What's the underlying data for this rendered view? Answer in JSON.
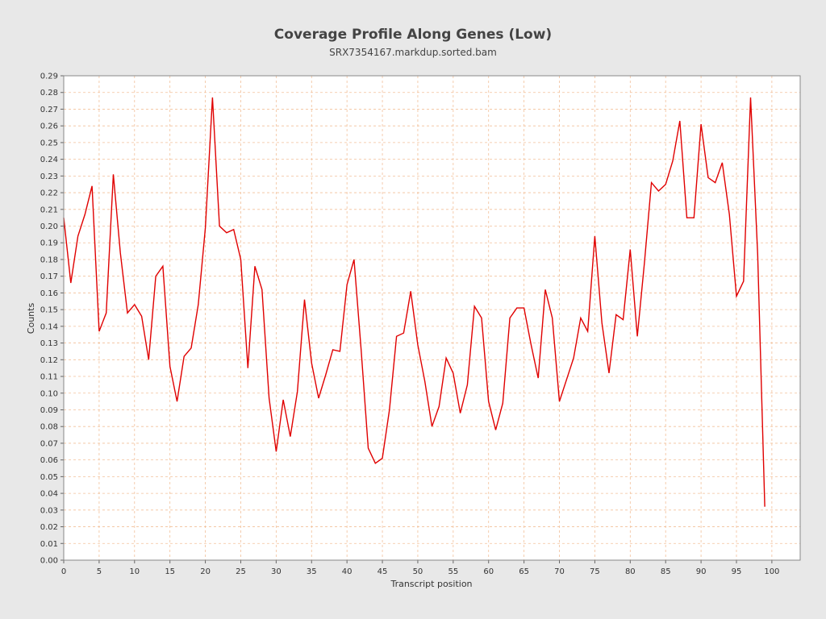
{
  "chart_data": {
    "type": "line",
    "title": "Coverage Profile Along Genes (Low)",
    "subtitle": "SRX7354167.markdup.sorted.bam",
    "xlabel": "Transcript position",
    "ylabel": "Counts",
    "xlim": [
      0,
      104
    ],
    "ylim": [
      0,
      0.29
    ],
    "x_ticks": [
      0,
      5,
      10,
      15,
      20,
      25,
      30,
      35,
      40,
      45,
      50,
      55,
      60,
      65,
      70,
      75,
      80,
      85,
      90,
      95,
      100
    ],
    "y_ticks": [
      "0.00",
      "0.01",
      "0.02",
      "0.03",
      "0.04",
      "0.05",
      "0.06",
      "0.07",
      "0.08",
      "0.09",
      "0.10",
      "0.11",
      "0.12",
      "0.13",
      "0.14",
      "0.15",
      "0.16",
      "0.17",
      "0.18",
      "0.19",
      "0.20",
      "0.21",
      "0.22",
      "0.23",
      "0.24",
      "0.25",
      "0.26",
      "0.27",
      "0.28",
      "0.29"
    ],
    "grid": true,
    "colors": {
      "line": "#e00000",
      "grid": "#f2c09a",
      "plot_bg": "#ffffff",
      "page_bg": "#e8e8e8"
    },
    "series": [
      {
        "x": [
          0,
          1,
          2,
          3,
          4,
          5,
          6,
          7,
          8,
          9,
          10,
          11,
          12,
          13,
          14,
          15,
          16,
          17,
          18,
          19,
          20,
          21,
          22,
          23,
          24,
          25,
          26,
          27,
          28,
          29,
          30,
          31,
          32,
          33,
          34,
          35,
          36,
          37,
          38,
          39,
          40,
          41,
          42,
          43,
          44,
          45,
          46,
          47,
          48,
          49,
          50,
          51,
          52,
          53,
          54,
          55,
          56,
          57,
          58,
          59,
          60,
          61,
          62,
          63,
          64,
          65,
          66,
          67,
          68,
          69,
          70,
          71,
          72,
          73,
          74,
          75,
          76,
          77,
          78,
          79,
          80,
          81,
          82,
          83,
          84,
          85,
          86,
          87,
          88,
          89,
          90,
          91,
          92,
          93,
          94,
          95,
          96,
          97,
          98,
          99
        ],
        "values": [
          0.205,
          0.166,
          0.194,
          0.207,
          0.224,
          0.137,
          0.148,
          0.231,
          0.184,
          0.148,
          0.153,
          0.146,
          0.12,
          0.17,
          0.176,
          0.116,
          0.095,
          0.122,
          0.127,
          0.153,
          0.199,
          0.277,
          0.2,
          0.196,
          0.198,
          0.18,
          0.115,
          0.176,
          0.162,
          0.097,
          0.065,
          0.096,
          0.074,
          0.101,
          0.156,
          0.118,
          0.097,
          0.111,
          0.126,
          0.125,
          0.165,
          0.18,
          0.126,
          0.067,
          0.058,
          0.061,
          0.09,
          0.134,
          0.136,
          0.161,
          0.129,
          0.107,
          0.08,
          0.092,
          0.121,
          0.112,
          0.088,
          0.105,
          0.152,
          0.145,
          0.095,
          0.078,
          0.094,
          0.145,
          0.151,
          0.151,
          0.129,
          0.109,
          0.162,
          0.145,
          0.095,
          0.108,
          0.121,
          0.145,
          0.137,
          0.194,
          0.142,
          0.112,
          0.147,
          0.144,
          0.186,
          0.134,
          0.178,
          0.226,
          0.221,
          0.225,
          0.239,
          0.263,
          0.205,
          0.205,
          0.261,
          0.229,
          0.226,
          0.238,
          0.207,
          0.158,
          0.167,
          0.277,
          0.183,
          0.032
        ]
      }
    ]
  }
}
